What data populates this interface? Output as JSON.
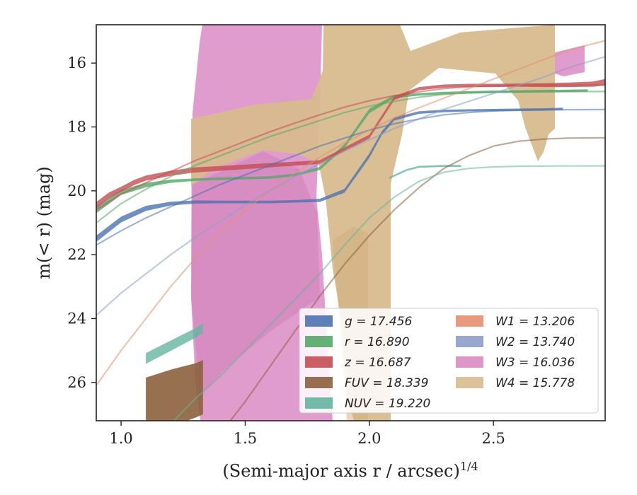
{
  "chart_data": {
    "type": "line",
    "title": "",
    "xlabel": "(Semi-major axis r / arcsec)",
    "xlabel_sup": "1/4",
    "ylabel": "m(< r) (mag)",
    "xlim": [
      0.9,
      2.95
    ],
    "ylim": [
      27.2,
      14.8
    ],
    "y_inverted": true,
    "x_ticks": [
      1.0,
      1.5,
      2.0,
      2.5
    ],
    "x_tick_labels": [
      "1.0",
      "1.5",
      "2.0",
      "2.5"
    ],
    "y_ticks": [
      16,
      18,
      20,
      22,
      24,
      26
    ],
    "y_tick_labels": [
      "16",
      "18",
      "20",
      "22",
      "24",
      "26"
    ],
    "grid": false,
    "legend": {
      "placement": "lower-right",
      "columns": 2
    },
    "series": [
      {
        "name": "g = 17.456",
        "band": "g",
        "color": "#4c72b0",
        "fit": {
          "x": [
            0.9,
            1.0,
            1.1,
            1.2,
            1.3,
            1.4,
            1.5,
            1.6,
            1.7,
            1.8,
            1.9,
            2.0,
            2.1,
            2.2,
            2.3,
            2.4,
            2.5,
            2.6,
            2.7,
            2.8,
            2.95
          ],
          "y": [
            21.7,
            21.25,
            20.85,
            20.5,
            20.15,
            19.8,
            19.5,
            19.2,
            18.9,
            18.6,
            18.35,
            18.1,
            17.9,
            17.75,
            17.62,
            17.55,
            17.5,
            17.48,
            17.47,
            17.46,
            17.456
          ]
        },
        "band_data": {
          "x": [
            0.9,
            1.0,
            1.1,
            1.2,
            1.3,
            1.4,
            1.5,
            1.6,
            1.7,
            1.8,
            1.9,
            2.0,
            2.05,
            2.1,
            2.2,
            2.3,
            2.4,
            2.5,
            2.6,
            2.7,
            2.78
          ],
          "y": [
            21.5,
            20.9,
            20.55,
            20.4,
            20.35,
            20.35,
            20.35,
            20.35,
            20.33,
            20.3,
            20.0,
            18.9,
            18.2,
            17.75,
            17.55,
            17.5,
            17.48,
            17.47,
            17.46,
            17.45,
            17.43
          ],
          "width": [
            0.2,
            0.18,
            0.16,
            0.12,
            0.1,
            0.08,
            0.08,
            0.08,
            0.08,
            0.1,
            0.12,
            0.14,
            0.12,
            0.1,
            0.08,
            0.08,
            0.07,
            0.07,
            0.07,
            0.07,
            0.07
          ]
        }
      },
      {
        "name": "r = 16.890",
        "band": "r",
        "color": "#55a868",
        "fit": {
          "x": [
            0.9,
            1.0,
            1.1,
            1.2,
            1.3,
            1.4,
            1.5,
            1.6,
            1.7,
            1.8,
            1.9,
            2.0,
            2.1,
            2.2,
            2.3,
            2.4,
            2.5,
            2.6,
            2.7,
            2.8,
            2.95
          ],
          "y": [
            21.0,
            20.4,
            19.95,
            19.55,
            19.2,
            18.9,
            18.6,
            18.3,
            18.05,
            17.8,
            17.55,
            17.35,
            17.2,
            17.07,
            16.98,
            16.93,
            16.91,
            16.9,
            16.895,
            16.892,
            16.89
          ]
        },
        "band_data": {
          "x": [
            0.9,
            1.0,
            1.1,
            1.2,
            1.3,
            1.4,
            1.5,
            1.6,
            1.7,
            1.8,
            1.9,
            2.0,
            2.1,
            2.2,
            2.3,
            2.4,
            2.5,
            2.6,
            2.7,
            2.8,
            2.88
          ],
          "y": [
            20.6,
            20.05,
            19.82,
            19.7,
            19.65,
            19.62,
            19.6,
            19.58,
            19.5,
            19.3,
            18.6,
            17.5,
            17.05,
            16.98,
            16.94,
            16.92,
            16.9,
            16.89,
            16.88,
            16.87,
            16.86
          ],
          "width": [
            0.2,
            0.16,
            0.14,
            0.1,
            0.08,
            0.08,
            0.08,
            0.08,
            0.08,
            0.1,
            0.12,
            0.14,
            0.1,
            0.08,
            0.08,
            0.08,
            0.08,
            0.08,
            0.08,
            0.08,
            0.08
          ]
        }
      },
      {
        "name": "z = 16.687",
        "band": "z",
        "color": "#c44e52",
        "fit": {
          "x": [
            0.9,
            1.0,
            1.1,
            1.2,
            1.3,
            1.4,
            1.5,
            1.6,
            1.7,
            1.8,
            1.9,
            2.0,
            2.1,
            2.2,
            2.3,
            2.4,
            2.5,
            2.6,
            2.7,
            2.8,
            2.95
          ],
          "y": [
            20.6,
            20.1,
            19.75,
            19.4,
            19.05,
            18.75,
            18.45,
            18.15,
            17.88,
            17.62,
            17.38,
            17.18,
            17.02,
            16.9,
            16.8,
            16.74,
            16.71,
            16.7,
            16.69,
            16.688,
            16.687
          ]
        },
        "band_data": {
          "x": [
            0.9,
            0.95,
            1.0,
            1.05,
            1.1,
            1.2,
            1.29,
            1.5,
            1.8,
            2.0,
            2.1,
            2.2,
            2.3,
            2.4,
            2.5,
            2.6,
            2.7,
            2.8,
            2.9,
            2.95
          ],
          "y": [
            20.45,
            20.15,
            19.95,
            19.75,
            19.6,
            19.45,
            19.35,
            19.25,
            19.1,
            18.3,
            17.1,
            16.8,
            16.72,
            16.7,
            16.7,
            16.69,
            16.69,
            16.68,
            16.66,
            16.6
          ],
          "width": [
            0.2,
            0.18,
            0.16,
            0.16,
            0.16,
            0.16,
            0.16,
            0.14,
            0.12,
            0.12,
            0.12,
            0.1,
            0.1,
            0.1,
            0.1,
            0.1,
            0.12,
            0.14,
            0.16,
            0.2
          ]
        }
      },
      {
        "name": "FUV = 18.339",
        "band": "FUV",
        "color": "#8c613c",
        "fit": {
          "x": [
            1.1,
            1.2,
            1.3,
            1.4,
            1.5,
            1.6,
            1.7,
            1.8,
            1.9,
            2.0,
            2.1,
            2.2,
            2.3,
            2.4,
            2.5,
            2.6,
            2.7,
            2.8,
            2.95
          ],
          "y": [
            29.5,
            29.0,
            28.5,
            27.6,
            26.6,
            25.5,
            24.4,
            23.3,
            22.3,
            21.4,
            20.6,
            19.9,
            19.3,
            18.9,
            18.6,
            18.45,
            18.38,
            18.35,
            18.339
          ]
        },
        "band_data": {
          "x": [
            1.1,
            1.2,
            1.3,
            1.33
          ],
          "y": [
            26.8,
            26.5,
            26.25,
            26.15
          ],
          "width": [
            1.9,
            1.8,
            1.7,
            1.7
          ]
        }
      },
      {
        "name": "NUV = 19.220",
        "band": "NUV",
        "color": "#64b5a0",
        "fit": {
          "x": [
            1.15,
            1.2,
            1.3,
            1.4,
            1.5,
            1.6,
            1.7,
            1.8,
            1.9,
            2.0,
            2.1,
            2.2,
            2.3,
            2.4,
            2.5,
            2.6,
            2.7,
            2.8,
            2.95
          ],
          "y": [
            27.6,
            27.3,
            26.5,
            25.8,
            25.0,
            24.2,
            23.4,
            22.6,
            21.7,
            20.85,
            20.2,
            19.7,
            19.42,
            19.3,
            19.25,
            19.23,
            19.225,
            19.222,
            19.22
          ]
        },
        "band_data": {
          "x": [
            1.1,
            1.2,
            1.3,
            1.33
          ],
          "y": [
            25.25,
            24.85,
            24.45,
            24.3
          ],
          "width": [
            0.34,
            0.32,
            0.3,
            0.3
          ],
          "x2": [
            2.08,
            2.15,
            2.2,
            2.3,
            2.37
          ],
          "y2": [
            19.6,
            19.35,
            19.25,
            19.22,
            19.22
          ],
          "width2": [
            0.06,
            0.06,
            0.06,
            0.06,
            0.06
          ]
        }
      },
      {
        "name": "W1 = 13.206",
        "band": "W1",
        "color": "#e58f6e",
        "fit": {
          "x": [
            0.9,
            1.0,
            1.1,
            1.2,
            1.3,
            1.4,
            1.5,
            1.6,
            1.7,
            1.8,
            1.9,
            2.0,
            2.1,
            2.2,
            2.3,
            2.4,
            2.5,
            2.6,
            2.7,
            2.8,
            2.95
          ],
          "y": [
            26.1,
            25.0,
            24.0,
            23.0,
            22.1,
            21.3,
            20.6,
            20.0,
            19.45,
            18.95,
            18.5,
            18.1,
            17.72,
            17.4,
            17.1,
            16.8,
            16.5,
            16.2,
            15.9,
            15.6,
            15.3
          ]
        }
      },
      {
        "name": "W2 = 13.740",
        "band": "W2",
        "color": "#8c9fc9",
        "fit": {
          "x": [
            0.9,
            1.0,
            1.1,
            1.2,
            1.3,
            1.4,
            1.5,
            1.6,
            1.7,
            1.8,
            1.9,
            2.0,
            2.1,
            2.2,
            2.3,
            2.4,
            2.5,
            2.6,
            2.7,
            2.8,
            2.95
          ],
          "y": [
            23.9,
            23.2,
            22.6,
            22.0,
            21.45,
            20.95,
            20.45,
            20.0,
            19.55,
            19.15,
            18.75,
            18.4,
            18.05,
            17.75,
            17.45,
            17.2,
            16.95,
            16.7,
            16.45,
            16.15,
            15.8
          ]
        }
      },
      {
        "name": "W3 = 16.036",
        "band": "W3",
        "color": "#da8bc3"
      },
      {
        "name": "W4 = 15.778",
        "band": "W4",
        "color": "#d8bb8e"
      }
    ]
  }
}
